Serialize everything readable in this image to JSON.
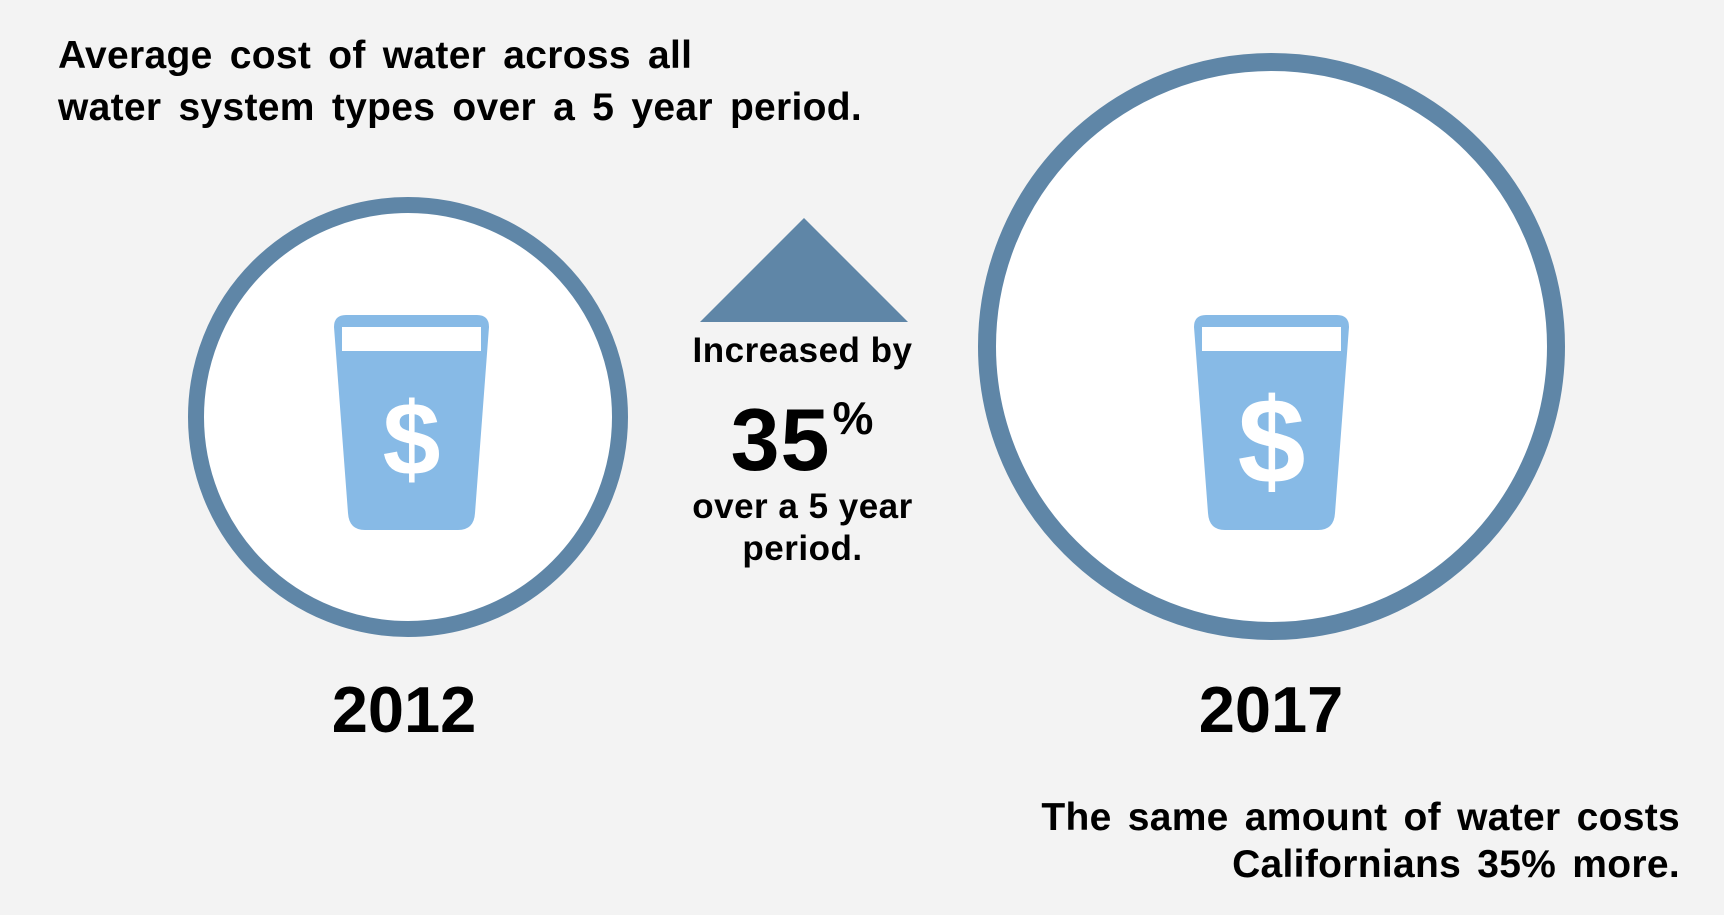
{
  "title": {
    "line1": "Average cost of water across all",
    "line2": "water system types over a 5 year period."
  },
  "left": {
    "year": "2012",
    "icon": "water-cup-dollar-icon",
    "currency_symbol": "$"
  },
  "right": {
    "year": "2017",
    "icon": "water-cup-dollar-icon",
    "currency_symbol": "$"
  },
  "change": {
    "icon": "up-triangle-icon",
    "label": "Increased by",
    "value": "35",
    "unit": "%",
    "period_line1": "over a 5 year",
    "period_line2": "period."
  },
  "footer": {
    "line1": "The same amount of water costs",
    "line2": "Californians 35% more."
  },
  "colors": {
    "background": "#f3f3f3",
    "ring": "#5f86a7",
    "cup": "#87bae6",
    "arrow": "#5f86a7"
  }
}
